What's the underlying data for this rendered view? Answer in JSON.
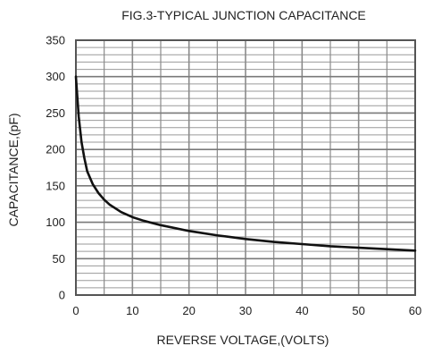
{
  "chart_data": {
    "type": "line",
    "title": "FIG.3-TYPICAL JUNCTION CAPACITANCE",
    "xlabel": "REVERSE VOLTAGE,(VOLTS)",
    "ylabel": "CAPACITANCE,(pF)",
    "xlim": [
      0,
      60
    ],
    "ylim": [
      0,
      350
    ],
    "x_ticks": [
      0,
      10,
      20,
      30,
      40,
      50,
      60
    ],
    "y_ticks": [
      0,
      50,
      100,
      150,
      200,
      250,
      300,
      350
    ],
    "grid": true,
    "series": [
      {
        "x": [
          0,
          0.5,
          1,
          1.5,
          2,
          3,
          4,
          5,
          6,
          8,
          10,
          12,
          15,
          20,
          25,
          30,
          35,
          40,
          45,
          50,
          55,
          60
        ],
        "y": [
          300,
          245,
          210,
          188,
          170,
          152,
          140,
          131,
          124,
          114,
          107,
          102,
          96,
          88,
          82,
          77,
          73,
          70,
          67,
          65,
          63,
          61
        ],
        "color": "#111111"
      }
    ]
  }
}
